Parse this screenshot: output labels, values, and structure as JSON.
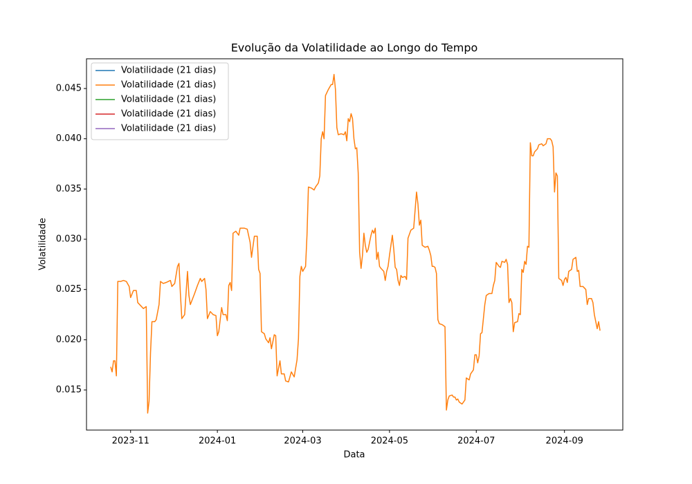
{
  "chart_data": {
    "type": "line",
    "title": "Evolução da Volatilidade ao Longo do Tempo",
    "x_label": "Data",
    "y_label": "Volatilidade",
    "xlim": [
      "2023-10-01",
      "2024-10-12"
    ],
    "ylim": [
      0.01101,
      0.04796
    ],
    "xticks": [
      {
        "value": "2023-11-01",
        "label": "2023-11"
      },
      {
        "value": "2024-01-01",
        "label": "2024-01"
      },
      {
        "value": "2024-03-01",
        "label": "2024-03"
      },
      {
        "value": "2024-05-01",
        "label": "2024-05"
      },
      {
        "value": "2024-07-01",
        "label": "2024-07"
      },
      {
        "value": "2024-09-01",
        "label": "2024-09"
      }
    ],
    "yticks": [
      0.015,
      {
        "value": 0.02,
        "label": "0.020"
      },
      0.025,
      {
        "value": 0.03,
        "label": "0.030"
      },
      0.035,
      {
        "value": 0.04,
        "label": "0.040"
      },
      0.045
    ],
    "legend": "upper left",
    "grid": false,
    "series": [
      {
        "name": "Volatilidade (21 dias)",
        "color": "#1f77b4",
        "x": [],
        "values": []
      },
      {
        "name": "Volatilidade (21 dias)",
        "color": "#ff7f0e",
        "x": [
          "2023-10-18",
          "2023-10-19",
          "2023-10-20",
          "2023-10-21",
          "2023-10-22",
          "2023-10-23",
          "2023-10-25",
          "2023-10-27",
          "2023-10-29",
          "2023-10-31",
          "2023-11-01",
          "2023-11-03",
          "2023-11-05",
          "2023-11-06",
          "2023-11-08",
          "2023-11-10",
          "2023-11-12",
          "2023-11-13",
          "2023-11-14",
          "2023-11-15",
          "2023-11-16",
          "2023-11-18",
          "2023-11-19",
          "2023-11-21",
          "2023-11-22",
          "2023-11-24",
          "2023-11-26",
          "2023-11-29",
          "2023-11-30",
          "2023-12-02",
          "2023-12-04",
          "2023-12-05",
          "2023-12-06",
          "2023-12-07",
          "2023-12-09",
          "2023-12-11",
          "2023-12-12",
          "2023-12-13",
          "2023-12-16",
          "2023-12-18",
          "2023-12-20",
          "2023-12-21",
          "2023-12-23",
          "2023-12-24",
          "2023-12-25",
          "2023-12-27",
          "2023-12-29",
          "2023-12-31",
          "2024-01-01",
          "2024-01-02",
          "2024-01-04",
          "2024-01-05",
          "2024-01-07",
          "2024-01-08",
          "2024-01-09",
          "2024-01-10",
          "2024-01-11",
          "2024-01-12",
          "2024-01-14",
          "2024-01-16",
          "2024-01-17",
          "2024-01-20",
          "2024-01-22",
          "2024-01-24",
          "2024-01-25",
          "2024-01-27",
          "2024-01-29",
          "2024-01-30",
          "2024-01-31",
          "2024-02-01",
          "2024-02-03",
          "2024-02-04",
          "2024-02-06",
          "2024-02-07",
          "2024-02-08",
          "2024-02-10",
          "2024-02-11",
          "2024-02-12",
          "2024-02-14",
          "2024-02-15",
          "2024-02-17",
          "2024-02-18",
          "2024-02-20",
          "2024-02-22",
          "2024-02-24",
          "2024-02-26",
          "2024-02-27",
          "2024-02-28",
          "2024-02-29",
          "2024-03-01",
          "2024-03-03",
          "2024-03-04",
          "2024-03-05",
          "2024-03-07",
          "2024-03-09",
          "2024-03-10",
          "2024-03-12",
          "2024-03-13",
          "2024-03-14",
          "2024-03-15",
          "2024-03-16",
          "2024-03-17",
          "2024-03-19",
          "2024-03-21",
          "2024-03-22",
          "2024-03-23",
          "2024-03-24",
          "2024-03-25",
          "2024-03-26",
          "2024-03-28",
          "2024-03-30",
          "2024-03-31",
          "2024-04-01",
          "2024-04-02",
          "2024-04-03",
          "2024-04-04",
          "2024-04-05",
          "2024-04-06",
          "2024-04-07",
          "2024-04-08",
          "2024-04-09",
          "2024-04-10",
          "2024-04-11",
          "2024-04-12",
          "2024-04-13",
          "2024-04-14",
          "2024-04-15",
          "2024-04-16",
          "2024-04-18",
          "2024-04-19",
          "2024-04-20",
          "2024-04-21",
          "2024-04-22",
          "2024-04-23",
          "2024-04-24",
          "2024-04-25",
          "2024-04-27",
          "2024-04-28",
          "2024-04-29",
          "2024-04-30",
          "2024-05-01",
          "2024-05-03",
          "2024-05-04",
          "2024-05-05",
          "2024-05-06",
          "2024-05-07",
          "2024-05-08",
          "2024-05-09",
          "2024-05-10",
          "2024-05-12",
          "2024-05-13",
          "2024-05-14",
          "2024-05-16",
          "2024-05-18",
          "2024-05-20",
          "2024-05-21",
          "2024-05-22",
          "2024-05-23",
          "2024-05-24",
          "2024-05-26",
          "2024-05-28",
          "2024-05-29",
          "2024-05-30",
          "2024-05-31",
          "2024-06-01",
          "2024-06-02",
          "2024-06-03",
          "2024-06-04",
          "2024-06-05",
          "2024-06-07",
          "2024-06-09",
          "2024-06-10",
          "2024-06-11",
          "2024-06-12",
          "2024-06-14",
          "2024-06-15",
          "2024-06-16",
          "2024-06-17",
          "2024-06-18",
          "2024-06-19",
          "2024-06-21",
          "2024-06-23",
          "2024-06-24",
          "2024-06-26",
          "2024-06-27",
          "2024-06-29",
          "2024-06-30",
          "2024-07-01",
          "2024-07-02",
          "2024-07-03",
          "2024-07-04",
          "2024-07-05",
          "2024-07-06",
          "2024-07-07",
          "2024-07-08",
          "2024-07-10",
          "2024-07-12",
          "2024-07-13",
          "2024-07-14",
          "2024-07-15",
          "2024-07-17",
          "2024-07-18",
          "2024-07-19",
          "2024-07-21",
          "2024-07-22",
          "2024-07-23",
          "2024-07-24",
          "2024-07-25",
          "2024-07-26",
          "2024-07-27",
          "2024-07-28",
          "2024-07-30",
          "2024-07-31",
          "2024-08-01",
          "2024-08-02",
          "2024-08-03",
          "2024-08-04",
          "2024-08-05",
          "2024-08-06",
          "2024-08-07",
          "2024-08-08",
          "2024-08-09",
          "2024-08-10",
          "2024-08-11",
          "2024-08-13",
          "2024-08-14",
          "2024-08-16",
          "2024-08-17",
          "2024-08-19",
          "2024-08-20",
          "2024-08-22",
          "2024-08-23",
          "2024-08-24",
          "2024-08-25",
          "2024-08-26",
          "2024-08-27",
          "2024-08-28",
          "2024-08-30",
          "2024-08-31",
          "2024-09-01",
          "2024-09-02",
          "2024-09-03",
          "2024-09-04",
          "2024-09-06",
          "2024-09-07",
          "2024-09-09",
          "2024-09-10",
          "2024-09-11",
          "2024-09-12",
          "2024-09-14",
          "2024-09-16",
          "2024-09-17",
          "2024-09-18",
          "2024-09-20",
          "2024-09-21",
          "2024-09-22",
          "2024-09-23",
          "2024-09-24",
          "2024-09-25",
          "2024-09-26"
        ],
        "values": [
          0.0173,
          0.0168,
          0.0179,
          0.0179,
          0.0164,
          0.0258,
          0.0258,
          0.0259,
          0.0258,
          0.0253,
          0.0242,
          0.0249,
          0.0249,
          0.0237,
          0.0234,
          0.0231,
          0.0233,
          0.0127,
          0.0139,
          0.0187,
          0.0218,
          0.0218,
          0.022,
          0.0235,
          0.0258,
          0.0256,
          0.0257,
          0.0259,
          0.0253,
          0.0256,
          0.0273,
          0.0276,
          0.0246,
          0.0221,
          0.0225,
          0.0268,
          0.0244,
          0.0235,
          0.0246,
          0.0254,
          0.0261,
          0.0258,
          0.0261,
          0.025,
          0.0221,
          0.0228,
          0.0225,
          0.0224,
          0.0204,
          0.0208,
          0.0232,
          0.0225,
          0.0225,
          0.0219,
          0.0254,
          0.0257,
          0.0249,
          0.0306,
          0.0308,
          0.0304,
          0.0311,
          0.0311,
          0.031,
          0.0297,
          0.0282,
          0.0303,
          0.0303,
          0.027,
          0.0266,
          0.0208,
          0.0206,
          0.0201,
          0.0197,
          0.0202,
          0.0191,
          0.0205,
          0.0204,
          0.0164,
          0.0179,
          0.0166,
          0.0166,
          0.0159,
          0.0158,
          0.0168,
          0.0163,
          0.018,
          0.0201,
          0.0263,
          0.0273,
          0.0268,
          0.0273,
          0.0304,
          0.0352,
          0.0351,
          0.0349,
          0.0352,
          0.0356,
          0.0363,
          0.04,
          0.0407,
          0.04,
          0.0443,
          0.0449,
          0.0454,
          0.0454,
          0.0464,
          0.0449,
          0.0411,
          0.0404,
          0.0405,
          0.0404,
          0.0407,
          0.0398,
          0.042,
          0.0417,
          0.0425,
          0.042,
          0.04,
          0.039,
          0.0391,
          0.0366,
          0.0287,
          0.0271,
          0.0284,
          0.0306,
          0.0294,
          0.0287,
          0.029,
          0.0304,
          0.0309,
          0.0306,
          0.0311,
          0.028,
          0.0287,
          0.0273,
          0.0271,
          0.0268,
          0.0259,
          0.0268,
          0.0273,
          0.0284,
          0.0304,
          0.029,
          0.0272,
          0.027,
          0.0259,
          0.0254,
          0.0264,
          0.0262,
          0.0263,
          0.026,
          0.0301,
          0.0309,
          0.0311,
          0.0347,
          0.0335,
          0.0314,
          0.0319,
          0.0294,
          0.0292,
          0.0293,
          0.0289,
          0.0284,
          0.0273,
          0.0273,
          0.0272,
          0.0266,
          0.022,
          0.0216,
          0.0215,
          0.0213,
          0.013,
          0.014,
          0.0144,
          0.0145,
          0.0143,
          0.0143,
          0.014,
          0.0141,
          0.0138,
          0.0136,
          0.014,
          0.0162,
          0.016,
          0.0166,
          0.017,
          0.0185,
          0.0185,
          0.0177,
          0.0184,
          0.0206,
          0.0207,
          0.0221,
          0.0235,
          0.0244,
          0.0246,
          0.0246,
          0.0254,
          0.0259,
          0.0277,
          0.0273,
          0.0272,
          0.0278,
          0.0277,
          0.028,
          0.0275,
          0.0237,
          0.0241,
          0.0237,
          0.0208,
          0.0217,
          0.0218,
          0.0226,
          0.0225,
          0.027,
          0.0267,
          0.0278,
          0.0275,
          0.0293,
          0.0292,
          0.0396,
          0.0383,
          0.0383,
          0.0387,
          0.039,
          0.0394,
          0.0395,
          0.0393,
          0.0395,
          0.04,
          0.04,
          0.0398,
          0.0392,
          0.0347,
          0.0366,
          0.0363,
          0.0261,
          0.0259,
          0.0254,
          0.026,
          0.0262,
          0.0257,
          0.0268,
          0.027,
          0.028,
          0.0282,
          0.0268,
          0.0269,
          0.0253,
          0.0253,
          0.025,
          0.0235,
          0.0241,
          0.0241,
          0.0237,
          0.0225,
          0.0218,
          0.0211,
          0.0218,
          0.0209
        ]
      },
      {
        "name": "Volatilidade (21 dias)",
        "color": "#2ca02c",
        "x": [],
        "values": []
      },
      {
        "name": "Volatilidade (21 dias)",
        "color": "#d62728",
        "x": [],
        "values": []
      },
      {
        "name": "Volatilidade (21 dias)",
        "color": "#9467bd",
        "x": [],
        "values": []
      }
    ]
  }
}
